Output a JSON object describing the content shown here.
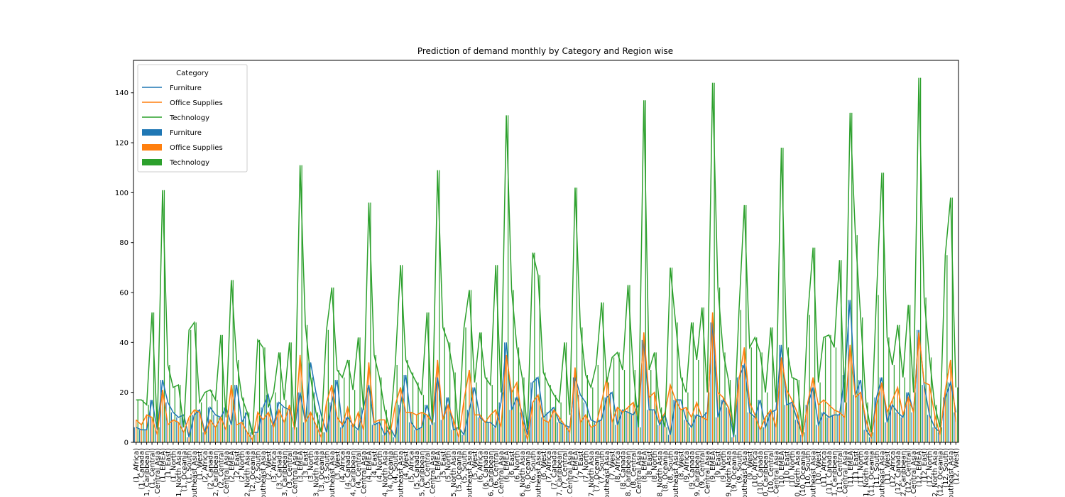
{
  "chart_data": {
    "type": "bar+line",
    "title": "Prediction of demand monthly  by Category and Region wise",
    "xlabel": "",
    "ylabel": "",
    "ylim": [
      0,
      153
    ],
    "yticks": [
      0,
      20,
      40,
      60,
      80,
      100,
      120,
      140
    ],
    "grid": false,
    "legend": {
      "title": "Category",
      "placement": "top-left",
      "entries": [
        {
          "label": "Furniture",
          "kind": "line"
        },
        {
          "label": "Office Supplies",
          "kind": "line"
        },
        {
          "label": "Technology",
          "kind": "line"
        },
        {
          "label": "Furniture",
          "kind": "bar"
        },
        {
          "label": "Office Supplies",
          "kind": "bar"
        },
        {
          "label": "Technology",
          "kind": "bar"
        }
      ]
    },
    "colors": {
      "Furniture": "#1f77b4",
      "Office Supplies": "#ff7f0e",
      "Technology": "#2ca02c"
    },
    "months": [
      "1",
      "2",
      "3",
      "4",
      "5",
      "6",
      "7",
      "8",
      "9",
      "10",
      "11",
      "12"
    ],
    "regions": [
      "Africa",
      "Canada",
      "Caribbean",
      "Central",
      "Central Asia",
      "EMEA",
      "East",
      "North",
      "North Asia",
      "Oceania",
      "South",
      "Southeast Asia",
      "West"
    ],
    "region_labels": [
      "Africa)",
      "Canada)",
      "Caribbean)",
      "Central)",
      "Central Asia)",
      "EMEA)",
      "East)",
      "North)",
      "North Asia)",
      "Oceania)",
      "South)",
      "Southeast Asia)",
      "West)"
    ],
    "series": [
      {
        "name": "Furniture",
        "values": [
          [
            6,
            5,
            5,
            17,
            5,
            25,
            16,
            12,
            10,
            11,
            2,
            11,
            13
          ],
          [
            4,
            14,
            11,
            10,
            14,
            7,
            23,
            8,
            12,
            4,
            4,
            14,
            19
          ],
          [
            7,
            16,
            14,
            13,
            6,
            20,
            8,
            32,
            20,
            11,
            4,
            16,
            25
          ],
          [
            6,
            10,
            7,
            5,
            14,
            23,
            7,
            8,
            3,
            6,
            2,
            15,
            27
          ],
          [
            8,
            5,
            6,
            15,
            7,
            26,
            9,
            18,
            5,
            6,
            3,
            13,
            22
          ],
          [
            10,
            8,
            8,
            6,
            16,
            40,
            13,
            18,
            12,
            3,
            24,
            26,
            10
          ],
          [
            12,
            14,
            8,
            7,
            6,
            26,
            19,
            16,
            9,
            8,
            9,
            18,
            20
          ],
          [
            7,
            13,
            12,
            11,
            15,
            41,
            13,
            13,
            7,
            11,
            3,
            17,
            17
          ],
          [
            9,
            6,
            11,
            10,
            12,
            48,
            10,
            17,
            14,
            2,
            26,
            31,
            12
          ],
          [
            10,
            17,
            6,
            12,
            13,
            39,
            15,
            16,
            9,
            3,
            15,
            22,
            7
          ],
          [
            12,
            10,
            11,
            11,
            27,
            57,
            19,
            25,
            5,
            2,
            18,
            26,
            8
          ],
          [
            15,
            12,
            10,
            20,
            12,
            45,
            23,
            11,
            6,
            4,
            18,
            24,
            12
          ]
        ]
      },
      {
        "name": "Office Supplies",
        "values": [
          [
            9,
            7,
            11,
            10,
            3,
            21,
            7,
            9,
            8,
            4,
            10,
            13,
            12
          ],
          [
            3,
            9,
            6,
            10,
            5,
            23,
            7,
            8,
            4,
            1,
            12,
            9,
            12
          ],
          [
            6,
            13,
            8,
            15,
            5,
            35,
            8,
            12,
            7,
            2,
            16,
            23,
            10
          ],
          [
            7,
            14,
            6,
            12,
            5,
            32,
            8,
            9,
            9,
            3,
            15,
            22,
            12
          ],
          [
            12,
            11,
            12,
            11,
            8,
            33,
            9,
            15,
            9,
            2,
            17,
            29,
            11
          ],
          [
            11,
            8,
            11,
            13,
            6,
            35,
            20,
            24,
            9,
            1,
            16,
            19,
            9
          ],
          [
            8,
            13,
            10,
            7,
            4,
            30,
            8,
            11,
            6,
            7,
            16,
            26,
            8
          ],
          [
            14,
            12,
            14,
            16,
            9,
            44,
            18,
            20,
            8,
            12,
            23,
            17,
            13
          ],
          [
            14,
            10,
            16,
            10,
            9,
            52,
            20,
            18,
            14,
            6,
            25,
            38,
            16
          ],
          [
            11,
            5,
            10,
            13,
            6,
            34,
            21,
            17,
            12,
            2,
            16,
            26,
            15
          ],
          [
            17,
            15,
            13,
            12,
            10,
            39,
            18,
            20,
            9,
            2,
            15,
            24,
            12
          ],
          [
            17,
            22,
            11,
            18,
            12,
            44,
            24,
            23,
            11,
            3,
            21,
            33,
            8
          ]
        ]
      },
      {
        "name": "Technology",
        "values": [
          [
            17,
            17,
            15,
            52,
            6,
            101,
            31,
            22,
            23,
            6,
            45,
            48,
            16
          ],
          [
            20,
            21,
            17,
            43,
            10,
            65,
            33,
            18,
            12,
            3,
            41,
            38,
            14
          ],
          [
            20,
            36,
            17,
            40,
            6,
            111,
            47,
            26,
            12,
            4,
            45,
            62,
            29
          ],
          [
            26,
            33,
            21,
            42,
            13,
            96,
            35,
            26,
            13,
            5,
            31,
            71,
            33
          ],
          [
            28,
            24,
            19,
            52,
            8,
            109,
            46,
            40,
            28,
            5,
            46,
            61,
            24
          ],
          [
            44,
            26,
            23,
            71,
            20,
            131,
            61,
            38,
            26,
            5,
            76,
            67,
            28
          ],
          [
            23,
            19,
            16,
            40,
            11,
            102,
            46,
            27,
            22,
            31,
            56,
            24,
            34
          ],
          [
            36,
            29,
            63,
            29,
            6,
            137,
            29,
            36,
            14,
            6,
            70,
            48,
            26
          ],
          [
            20,
            48,
            33,
            54,
            20,
            144,
            62,
            36,
            25,
            3,
            53,
            95,
            38
          ],
          [
            42,
            36,
            20,
            46,
            16,
            118,
            38,
            26,
            25,
            4,
            51,
            78,
            24
          ],
          [
            42,
            43,
            38,
            73,
            16,
            132,
            83,
            50,
            16,
            4,
            59,
            108,
            42
          ],
          [
            31,
            47,
            26,
            55,
            20,
            146,
            58,
            34,
            15,
            6,
            75,
            98,
            22
          ]
        ]
      }
    ]
  }
}
